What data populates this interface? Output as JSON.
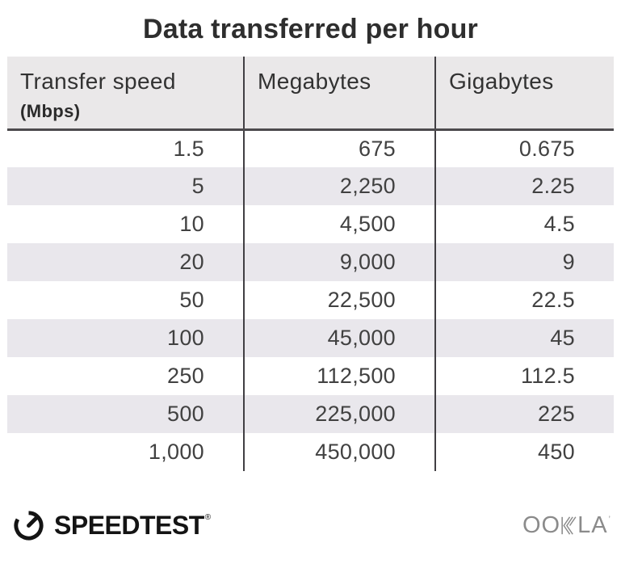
{
  "title": "Data transferred per hour",
  "table": {
    "columns": [
      {
        "label": "Transfer speed",
        "sublabel": "(Mbps)"
      },
      {
        "label": "Megabytes"
      },
      {
        "label": "Gigabytes"
      }
    ],
    "rows": [
      [
        "1.5",
        "675",
        "0.675"
      ],
      [
        "5",
        "2,250",
        "2.25"
      ],
      [
        "10",
        "4,500",
        "4.5"
      ],
      [
        "20",
        "9,000",
        "9"
      ],
      [
        "50",
        "22,500",
        "22.5"
      ],
      [
        "100",
        "45,000",
        "45"
      ],
      [
        "250",
        "112,500",
        "112.5"
      ],
      [
        "500",
        "225,000",
        "225"
      ],
      [
        "1,000",
        "450,000",
        "450"
      ]
    ]
  },
  "chart_data": {
    "type": "table",
    "title": "Data transferred per hour",
    "columns": [
      "Transfer speed (Mbps)",
      "Megabytes",
      "Gigabytes"
    ],
    "rows": [
      [
        1.5,
        675,
        0.675
      ],
      [
        5,
        2250,
        2.25
      ],
      [
        10,
        4500,
        4.5
      ],
      [
        20,
        9000,
        9
      ],
      [
        50,
        22500,
        22.5
      ],
      [
        100,
        45000,
        45
      ],
      [
        250,
        112500,
        112.5
      ],
      [
        500,
        225000,
        225
      ],
      [
        1000,
        450000,
        450
      ]
    ]
  },
  "footer": {
    "speedtest_label": "SPEEDTEST",
    "speedtest_reg": "®",
    "ookla_left": "OO",
    "ookla_right": "LA",
    "ookla_tm": "’"
  },
  "colors": {
    "header_bg": "#eae8e9",
    "stripe_bg": "#e9e7ec",
    "divider": "#413f43",
    "title_text": "#2e2e2e",
    "body_text": "#414141",
    "speedtest_black": "#141414",
    "ookla_gray": "#8b8b8b"
  }
}
